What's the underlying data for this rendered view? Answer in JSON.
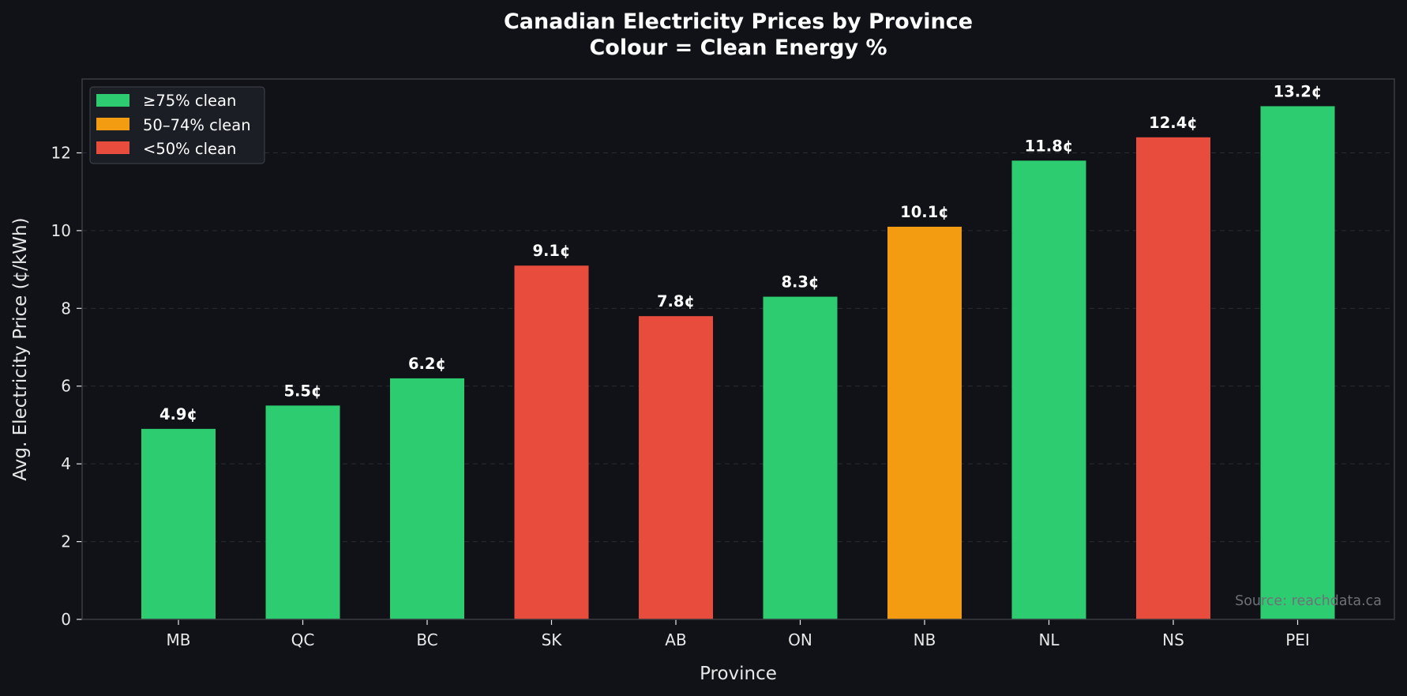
{
  "chart_data": {
    "type": "bar",
    "title": "Canadian Electricity Prices by Province",
    "subtitle": "Colour = Clean Energy %",
    "xlabel": "Province",
    "ylabel": "Avg. Electricity Price (¢/kWh)",
    "ylim": [
      0,
      13.9
    ],
    "yticks": [
      0,
      2,
      4,
      6,
      8,
      10,
      12
    ],
    "grid": true,
    "categories": [
      "MB",
      "QC",
      "BC",
      "SK",
      "AB",
      "ON",
      "NB",
      "NL",
      "NS",
      "PEI"
    ],
    "values": [
      4.9,
      5.5,
      6.2,
      9.1,
      7.8,
      8.3,
      10.1,
      11.8,
      12.4,
      13.2
    ],
    "value_labels": [
      "4.9¢",
      "5.5¢",
      "6.2¢",
      "9.1¢",
      "7.8¢",
      "8.3¢",
      "10.1¢",
      "11.8¢",
      "12.4¢",
      "13.2¢"
    ],
    "clean_class": [
      "high",
      "high",
      "high",
      "low",
      "low",
      "high",
      "mid",
      "high",
      "low",
      "high"
    ],
    "legend": {
      "placement": "top-left",
      "entries": [
        {
          "key": "high",
          "label": "≥75% clean",
          "color": "#2ecc71"
        },
        {
          "key": "mid",
          "label": "50–74% clean",
          "color": "#f39c12"
        },
        {
          "key": "low",
          "label": "<50% clean",
          "color": "#e74c3c"
        }
      ]
    },
    "annotation": "Source: reachdata.ca"
  },
  "colors": {
    "background": "#111217",
    "axes_edge": "#3a3c43",
    "legend_bg": "#1c1e26",
    "legend_edge": "#44464e"
  }
}
